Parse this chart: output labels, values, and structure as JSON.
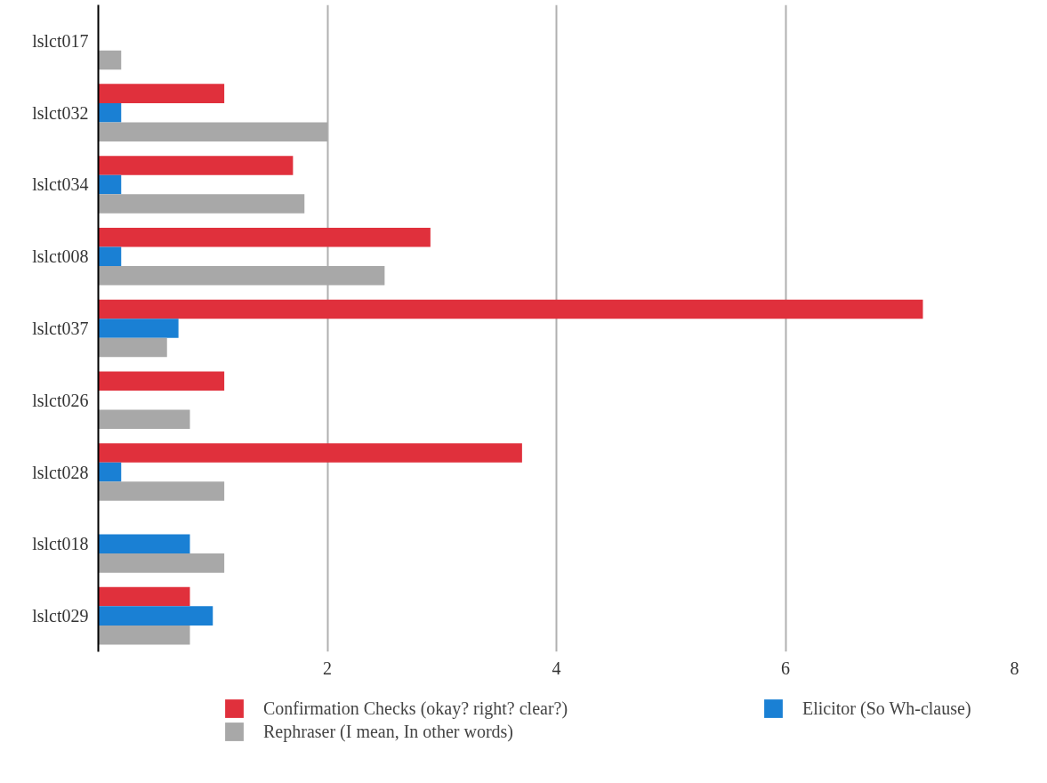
{
  "chart_data": {
    "type": "bar",
    "orientation": "horizontal",
    "categories": [
      "lslct017",
      "lslct032",
      "lslct034",
      "lslct008",
      "lslct037",
      "lslct026",
      "lslct028",
      "lslct018",
      "lslct029"
    ],
    "series": [
      {
        "name": "Confirmation Checks (okay? right? clear?)",
        "color": "#e0303c",
        "values": [
          null,
          1.1,
          1.7,
          2.9,
          7.2,
          1.1,
          3.7,
          null,
          0.8
        ]
      },
      {
        "name": "Elicitor (So Wh-clause)",
        "color": "#1a80d4",
        "values": [
          null,
          0.2,
          0.2,
          0.2,
          0.7,
          null,
          0.2,
          0.8,
          1.0
        ]
      },
      {
        "name": "Rephraser (I mean, In other words)",
        "color": "#a8a8a8",
        "values": [
          0.2,
          2.0,
          1.8,
          2.5,
          0.6,
          0.8,
          1.1,
          1.1,
          0.8
        ]
      }
    ],
    "xlim": [
      0,
      8
    ],
    "xticks": [
      2,
      4,
      6,
      8
    ],
    "grid": "x",
    "legend": "bottom"
  }
}
